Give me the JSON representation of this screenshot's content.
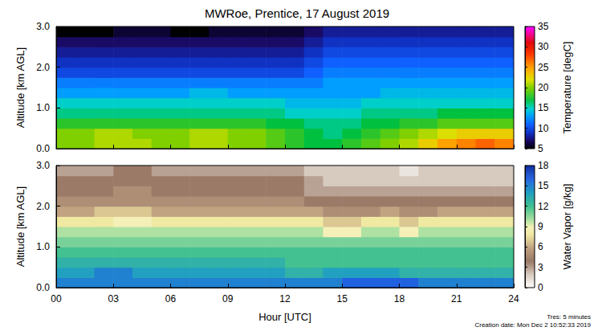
{
  "title": "MWRoe, Prentice, 17 August 2019",
  "footnotes": [
    "Tres: 5 minutes",
    "Creation date: Mon Dec 2 10:52:33 2019"
  ],
  "chart_data": [
    {
      "type": "heatmap",
      "y_label": "Altitude [km AGL]",
      "xlim": [
        0,
        24
      ],
      "xticks": [
        {
          "value": 0,
          "label": "00"
        },
        {
          "value": 3,
          "label": "03"
        },
        {
          "value": 6,
          "label": "06"
        },
        {
          "value": 9,
          "label": "09"
        },
        12,
        15,
        18,
        21,
        24
      ],
      "ylim": [
        0,
        3
      ],
      "yticks": [
        {
          "value": 0,
          "label": "0.0"
        },
        {
          "value": 1,
          "label": "1.0"
        },
        {
          "value": 2,
          "label": "2.0"
        },
        {
          "value": 3,
          "label": "3.0"
        }
      ],
      "tick_labels": "y",
      "x_bins": [
        0,
        1,
        2,
        3,
        4,
        5,
        6,
        7,
        8,
        9,
        10,
        11,
        12,
        13,
        14,
        15,
        16,
        17,
        18,
        19,
        20,
        21,
        22,
        23,
        24
      ],
      "y_bins": [
        0,
        0.25,
        0.5,
        0.75,
        1,
        1.25,
        1.5,
        1.75,
        2,
        2.25,
        2.5,
        2.75,
        3
      ],
      "cells": [
        [
          20,
          20,
          21,
          21,
          21,
          20,
          20,
          21,
          21,
          20,
          20,
          19,
          18,
          17,
          17,
          18,
          19,
          20,
          21,
          23,
          25,
          26,
          27,
          26
        ],
        [
          20,
          20,
          21,
          21,
          20,
          20,
          20,
          21,
          21,
          20,
          20,
          19,
          18,
          17,
          16,
          17,
          18,
          19,
          20,
          21,
          22,
          23,
          23,
          23
        ],
        [
          18,
          18,
          18,
          18,
          18,
          18,
          18,
          18,
          18,
          18,
          18,
          17,
          17,
          16,
          16,
          16,
          17,
          17,
          18,
          18,
          19,
          19,
          19,
          19
        ],
        [
          16,
          16,
          16,
          16,
          16,
          16,
          16,
          16,
          16,
          16,
          16,
          16,
          15,
          15,
          15,
          15,
          16,
          16,
          16,
          16,
          17,
          17,
          17,
          17
        ],
        [
          15,
          15,
          15,
          15,
          15,
          15,
          15,
          15,
          15,
          15,
          15,
          15,
          14,
          14,
          14,
          14,
          15,
          15,
          15,
          15,
          15,
          15,
          15,
          15
        ],
        [
          13,
          13,
          13,
          13,
          13,
          13,
          13,
          14,
          14,
          13,
          13,
          13,
          13,
          13,
          13,
          13,
          13,
          14,
          14,
          14,
          14,
          14,
          14,
          14
        ],
        [
          12,
          12,
          12,
          12,
          12,
          12,
          12,
          12,
          12,
          12,
          12,
          12,
          12,
          12,
          13,
          13,
          13,
          13,
          13,
          13,
          13,
          13,
          13,
          13
        ],
        [
          10,
          10,
          10,
          10,
          10,
          10,
          10,
          10,
          10,
          10,
          10,
          10,
          10,
          11,
          12,
          12,
          12,
          12,
          12,
          12,
          12,
          12,
          12,
          12
        ],
        [
          9,
          9,
          9,
          9,
          9,
          9,
          9,
          9,
          9,
          9,
          9,
          9,
          9,
          10,
          11,
          11,
          11,
          11,
          11,
          11,
          11,
          11,
          11,
          11
        ],
        [
          8,
          8,
          8,
          8,
          8,
          8,
          8,
          8,
          8,
          8,
          8,
          8,
          8,
          9,
          10,
          10,
          10,
          10,
          10,
          10,
          10,
          10,
          10,
          10
        ],
        [
          7,
          7,
          7,
          7,
          7,
          7,
          7,
          7,
          7,
          7,
          7,
          7,
          7,
          8,
          9,
          9,
          9,
          9,
          9,
          9,
          9,
          9,
          9,
          9
        ],
        [
          5,
          5,
          5,
          6,
          6,
          6,
          5,
          5,
          6,
          6,
          6,
          6,
          6,
          7,
          8,
          8,
          8,
          8,
          8,
          8,
          8,
          8,
          8,
          8
        ]
      ],
      "colorbar": {
        "label": "Temperature [degC]",
        "range": [
          5,
          35
        ],
        "ticks": [
          5,
          10,
          15,
          20,
          25,
          30,
          35
        ]
      }
    },
    {
      "type": "heatmap",
      "x_label": "Hour [UTC]",
      "y_label": "Altitude [km AGL]",
      "xlim": [
        0,
        24
      ],
      "xticks": [
        {
          "value": 0,
          "label": "00"
        },
        {
          "value": 3,
          "label": "03"
        },
        {
          "value": 6,
          "label": "06"
        },
        {
          "value": 9,
          "label": "09"
        },
        12,
        15,
        18,
        21,
        24
      ],
      "ylim": [
        0,
        3
      ],
      "yticks": [
        {
          "value": 0,
          "label": "0.0"
        },
        {
          "value": 1,
          "label": "1.0"
        },
        {
          "value": 2,
          "label": "2.0"
        },
        {
          "value": 3,
          "label": "3.0"
        }
      ],
      "x_bins": [
        0,
        1,
        2,
        3,
        4,
        5,
        6,
        7,
        8,
        9,
        10,
        11,
        12,
        13,
        14,
        15,
        16,
        17,
        18,
        19,
        20,
        21,
        22,
        23,
        24
      ],
      "y_bins": [
        0,
        0.25,
        0.5,
        0.75,
        1,
        1.25,
        1.5,
        1.75,
        2,
        2.25,
        2.5,
        2.75,
        3
      ],
      "cells": [
        [
          15,
          15,
          15,
          15,
          15,
          15,
          15,
          15,
          15,
          15,
          15,
          15,
          15,
          15,
          15,
          16,
          16,
          16,
          16,
          15,
          15,
          15,
          15,
          15
        ],
        [
          14,
          14,
          15,
          15,
          14,
          14,
          14,
          14,
          14,
          14,
          14,
          14,
          13,
          13,
          14,
          14,
          14,
          14,
          13,
          13,
          13,
          13,
          13,
          13
        ],
        [
          13,
          13,
          13,
          13,
          13,
          13,
          13,
          13,
          13,
          13,
          13,
          13,
          12,
          12,
          12,
          12,
          12,
          12,
          12,
          12,
          12,
          12,
          12,
          12
        ],
        [
          12,
          12,
          12,
          12,
          12,
          12,
          12,
          12,
          12,
          12,
          12,
          12,
          12,
          12,
          12,
          12,
          12,
          12,
          12,
          12,
          12,
          12,
          12,
          12
        ],
        [
          11,
          11,
          11,
          11,
          11,
          11,
          11,
          11,
          11,
          11,
          11,
          11,
          11,
          11,
          11,
          11,
          11,
          11,
          11,
          11,
          11,
          11,
          11,
          11
        ],
        [
          10,
          10,
          10,
          10,
          10,
          10,
          10,
          10,
          10,
          10,
          10,
          10,
          10,
          10,
          9,
          9,
          10,
          10,
          9,
          10,
          10,
          10,
          10,
          10
        ],
        [
          8,
          8,
          8,
          9,
          9,
          8,
          8,
          8,
          8,
          8,
          8,
          8,
          8,
          8,
          7,
          7,
          8,
          8,
          7,
          8,
          8,
          8,
          8,
          8
        ],
        [
          6,
          6,
          7,
          7,
          7,
          6,
          6,
          6,
          6,
          6,
          6,
          6,
          6,
          6,
          5,
          5,
          5,
          6,
          5,
          5,
          6,
          6,
          6,
          6
        ],
        [
          5,
          5,
          5,
          5,
          5,
          5,
          5,
          5,
          5,
          5,
          5,
          5,
          5,
          4,
          4,
          4,
          4,
          4,
          4,
          4,
          4,
          4,
          4,
          4
        ],
        [
          4,
          4,
          4,
          5,
          5,
          4,
          4,
          4,
          4,
          4,
          4,
          4,
          4,
          3,
          3,
          3,
          3,
          3,
          3,
          3,
          3,
          3,
          3,
          3
        ],
        [
          4,
          4,
          4,
          4,
          4,
          4,
          4,
          4,
          4,
          4,
          4,
          4,
          4,
          3,
          2,
          2,
          2,
          2,
          2,
          2,
          2,
          2,
          2,
          2
        ],
        [
          3,
          3,
          3,
          4,
          4,
          3,
          3,
          3,
          3,
          3,
          3,
          3,
          3,
          2,
          2,
          2,
          2,
          2,
          1,
          2,
          2,
          2,
          2,
          2
        ]
      ],
      "colorbar": {
        "label": "Water Vapor [g/kg]",
        "range": [
          0,
          18
        ],
        "ticks": [
          0,
          3,
          6,
          9,
          12,
          15,
          18
        ]
      }
    }
  ]
}
